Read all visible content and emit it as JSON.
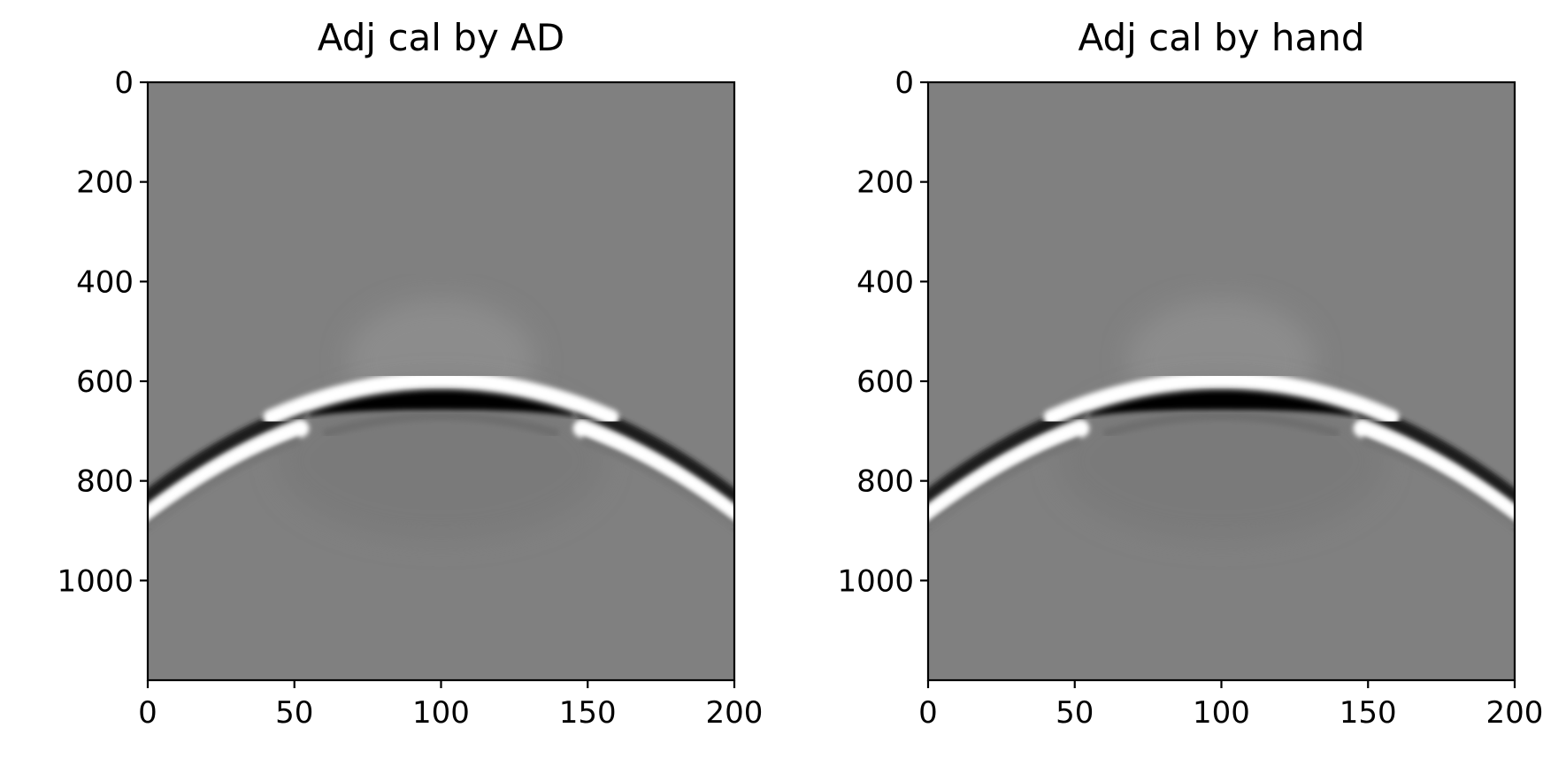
{
  "chart_data": [
    {
      "type": "heatmap",
      "title": "Adj cal by AD",
      "xlabel": "",
      "ylabel": "",
      "xlim": [
        0,
        200
      ],
      "ylim": [
        1200,
        0
      ],
      "x_ticks": [
        0,
        50,
        100,
        150,
        200
      ],
      "y_ticks": [
        0,
        200,
        400,
        600,
        800,
        1000
      ],
      "colormap": "gray",
      "background_value": 0,
      "features": {
        "apex": {
          "x": 100,
          "y": 625
        },
        "arc_end_left": {
          "x": 0,
          "y": 850
        },
        "arc_end_right": {
          "x": 200,
          "y": 850
        },
        "black_lobe": {
          "x_range": [
            55,
            145
          ],
          "y_top": 620,
          "y_bottom_edges": 690
        },
        "white_lobe_above_apex": {
          "y": 605
        },
        "flank_crossover": {
          "x_left": 50,
          "x_right": 150,
          "y": 690
        }
      }
    },
    {
      "type": "heatmap",
      "title": "Adj cal by hand",
      "xlabel": "",
      "ylabel": "",
      "xlim": [
        0,
        200
      ],
      "ylim": [
        1200,
        0
      ],
      "x_ticks": [
        0,
        50,
        100,
        150,
        200
      ],
      "y_ticks": [
        0,
        200,
        400,
        600,
        800,
        1000
      ],
      "colormap": "gray",
      "background_value": 0,
      "features": {
        "apex": {
          "x": 100,
          "y": 625
        },
        "arc_end_left": {
          "x": 0,
          "y": 850
        },
        "arc_end_right": {
          "x": 200,
          "y": 850
        },
        "black_lobe": {
          "x_range": [
            55,
            145
          ],
          "y_top": 620,
          "y_bottom_edges": 690
        },
        "white_lobe_above_apex": {
          "y": 605
        },
        "flank_crossover": {
          "x_left": 50,
          "x_right": 150,
          "y": 690
        }
      }
    }
  ]
}
